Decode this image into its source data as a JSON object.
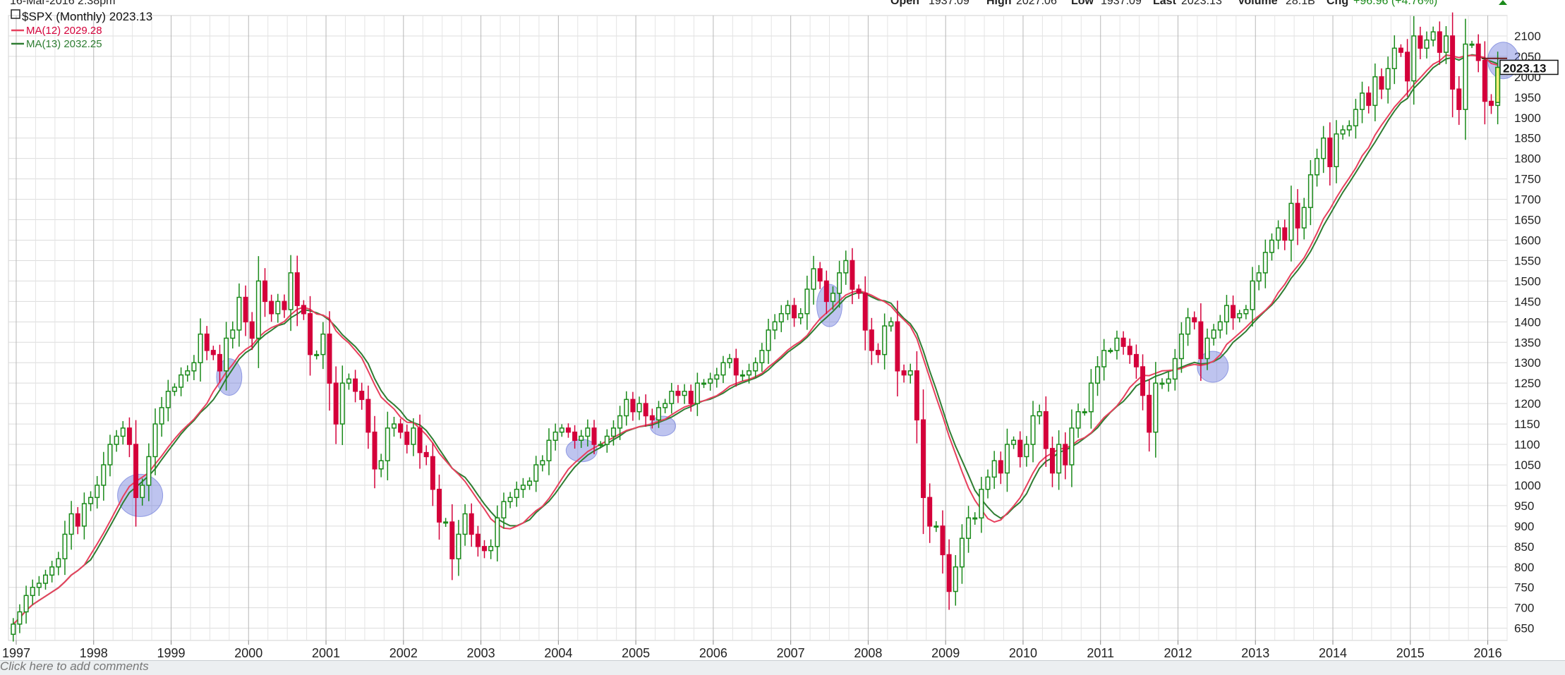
{
  "header": {
    "timestamp": "16-Mar-2016 2:38pm",
    "open_label": "Open",
    "open_value": "1937.09",
    "high_label": "High",
    "high_value": "2027.06",
    "low_label": "Low",
    "low_value": "1937.09",
    "last_label": "Last",
    "last_value": "2023.13",
    "volume_label": "Volume",
    "volume_value": "28.1B",
    "chg_label": "Chg",
    "chg_value": "+96.96 (+4.76%)"
  },
  "legend": {
    "symbol_line": "$SPX (Monthly) 2023.13",
    "ma12_line": "MA(12) 2029.28",
    "ma13_line": "MA(13) 2032.25"
  },
  "last_price_tag": "2023.13",
  "comment_prompt": "Click here to add comments",
  "colors": {
    "up": "#1a8a1a",
    "down": "#d4003a",
    "ma12": "#e8405e",
    "ma13": "#2e7d32",
    "highlight": "#5c6bd6"
  },
  "chart_data": {
    "type": "candlestick",
    "title": "$SPX (Monthly)",
    "ylim": [
      620,
      2150
    ],
    "y_ticks": [
      650,
      700,
      750,
      800,
      850,
      900,
      950,
      1000,
      1050,
      1100,
      1150,
      1200,
      1250,
      1300,
      1350,
      1400,
      1450,
      1500,
      1550,
      1600,
      1650,
      1700,
      1750,
      1800,
      1850,
      1900,
      1950,
      2000,
      2050,
      2100
    ],
    "x_ticks": [
      "1997",
      "1998",
      "1999",
      "2000",
      "2001",
      "2002",
      "2003",
      "2004",
      "2005",
      "2006",
      "2007",
      "2008",
      "2009",
      "2010",
      "2011",
      "2012",
      "2013",
      "2014",
      "2015",
      "2016"
    ],
    "x_start": 1996.9,
    "x_end": 2016.25,
    "grid": true,
    "close": [
      660,
      690,
      730,
      750,
      760,
      780,
      800,
      820,
      880,
      930,
      900,
      955,
      970,
      1000,
      1050,
      1100,
      1120,
      1140,
      1100,
      970,
      1000,
      1070,
      1150,
      1190,
      1230,
      1240,
      1270,
      1280,
      1300,
      1370,
      1330,
      1320,
      1280,
      1360,
      1380,
      1460,
      1400,
      1360,
      1500,
      1450,
      1420,
      1450,
      1430,
      1520,
      1440,
      1420,
      1320,
      1320,
      1370,
      1250,
      1150,
      1250,
      1260,
      1230,
      1210,
      1130,
      1040,
      1060,
      1140,
      1150,
      1130,
      1100,
      1140,
      1080,
      1070,
      990,
      910,
      910,
      820,
      880,
      930,
      880,
      850,
      840,
      850,
      920,
      960,
      970,
      990,
      1000,
      1010,
      1050,
      1060,
      1110,
      1130,
      1140,
      1130,
      1110,
      1120,
      1140,
      1100,
      1100,
      1120,
      1140,
      1170,
      1210,
      1180,
      1200,
      1170,
      1160,
      1190,
      1200,
      1230,
      1220,
      1230,
      1200,
      1250,
      1250,
      1260,
      1270,
      1300,
      1310,
      1270,
      1270,
      1280,
      1300,
      1330,
      1380,
      1400,
      1420,
      1440,
      1410,
      1420,
      1480,
      1530,
      1500,
      1450,
      1470,
      1520,
      1550,
      1480,
      1470,
      1380,
      1330,
      1320,
      1390,
      1400,
      1280,
      1270,
      1280,
      1160,
      970,
      900,
      900,
      830,
      740,
      800,
      870,
      920,
      920,
      990,
      1020,
      1060,
      1030,
      1100,
      1110,
      1070,
      1100,
      1170,
      1180,
      1090,
      1030,
      1100,
      1050,
      1140,
      1180,
      1180,
      1250,
      1290,
      1330,
      1330,
      1360,
      1340,
      1320,
      1290,
      1220,
      1130,
      1250,
      1250,
      1260,
      1310,
      1370,
      1410,
      1400,
      1310,
      1360,
      1380,
      1400,
      1440,
      1410,
      1420,
      1430,
      1500,
      1520,
      1570,
      1600,
      1630,
      1600,
      1690,
      1630,
      1680,
      1760,
      1800,
      1850,
      1780,
      1860,
      1870,
      1880,
      1920,
      1960,
      1930,
      2000,
      1970,
      2020,
      2070,
      2060,
      1990,
      2100,
      2070,
      2090,
      2110,
      2060,
      2100,
      1970,
      1920,
      2080,
      2080,
      2040,
      1940,
      1930,
      2023
    ],
    "ma12_final": 2029.28,
    "ma13_final": 2032.25,
    "series": [
      {
        "name": "$SPX (Monthly)"
      },
      {
        "name": "MA(12)"
      },
      {
        "name": "MA(13)"
      }
    ]
  }
}
